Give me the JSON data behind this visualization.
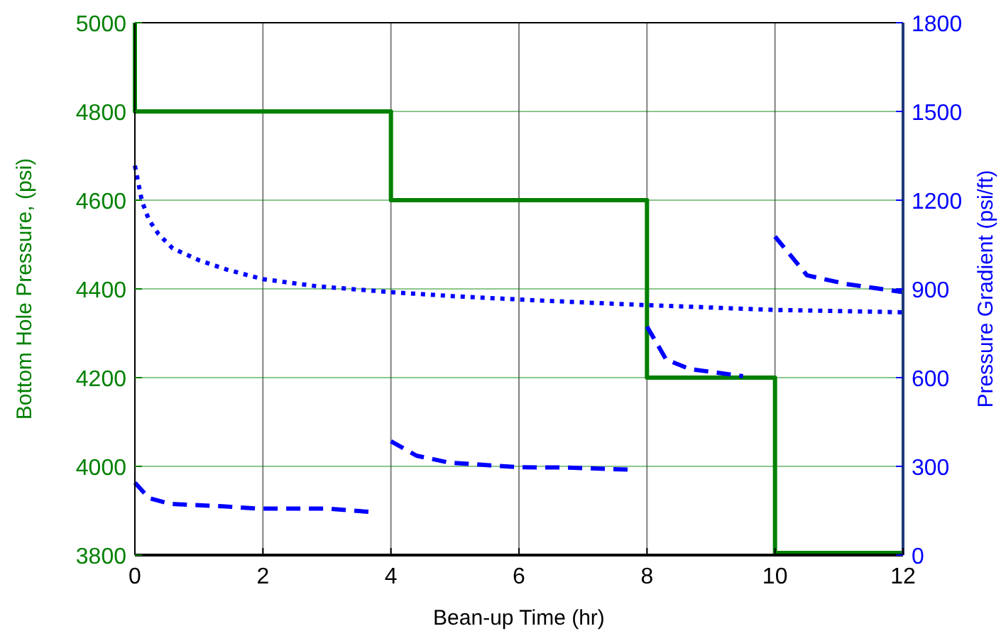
{
  "chart_data": {
    "type": "line",
    "xlabel": "Bean-up Time (hr)",
    "ylabel": "Bottom Hole Pressure, (psi)",
    "y2label": "Pressure Gradient (psi/ft)",
    "xlim": [
      0,
      12
    ],
    "xticks": [
      0,
      2,
      4,
      6,
      8,
      10,
      12
    ],
    "ylim": [
      3800,
      5000
    ],
    "yticks": [
      3800,
      4000,
      4200,
      4400,
      4600,
      4800,
      5000
    ],
    "y2lim": [
      0,
      1800
    ],
    "y2ticks": [
      0,
      300,
      600,
      900,
      1200,
      1500,
      1800
    ],
    "grid": true,
    "series": [
      {
        "type": "step",
        "color": "#008000",
        "line_style": "solid",
        "x": [
          0,
          0,
          4,
          8,
          10,
          12
        ],
        "values": [
          5000,
          4800,
          4600,
          4200,
          3805,
          3805
        ]
      },
      {
        "axis": "y2",
        "color": "#0000ff",
        "line_style": "dotted",
        "x": [
          0,
          0.11,
          0.22,
          0.37,
          0.59,
          1.0,
          1.44,
          2.0,
          2.84,
          4.0,
          5.0,
          6.3,
          8.0,
          10.0,
          12.0
        ],
        "values": [
          1317,
          1197,
          1133,
          1085,
          1037,
          997,
          965,
          933,
          909,
          889,
          875,
          861,
          845,
          829,
          821
        ]
      },
      {
        "axis": "y2",
        "color": "#0000ff",
        "line_style": "dashed",
        "x": [
          0,
          0.22,
          0.55,
          1.37,
          1.95,
          3.0,
          3.73,
          3.9,
          4.0,
          4.4,
          4.9,
          6.0,
          6.75,
          7.7,
          7.9,
          8.0,
          8.3,
          8.67,
          9.5,
          9.8,
          10.0,
          10.5,
          11.1,
          12.0
        ],
        "values": [
          245,
          193,
          173,
          165,
          157,
          157,
          145,
          null,
          385,
          336,
          313,
          297,
          296,
          289,
          null,
          773,
          661,
          629,
          605,
          null,
          1077,
          946,
          917,
          889
        ]
      }
    ]
  }
}
